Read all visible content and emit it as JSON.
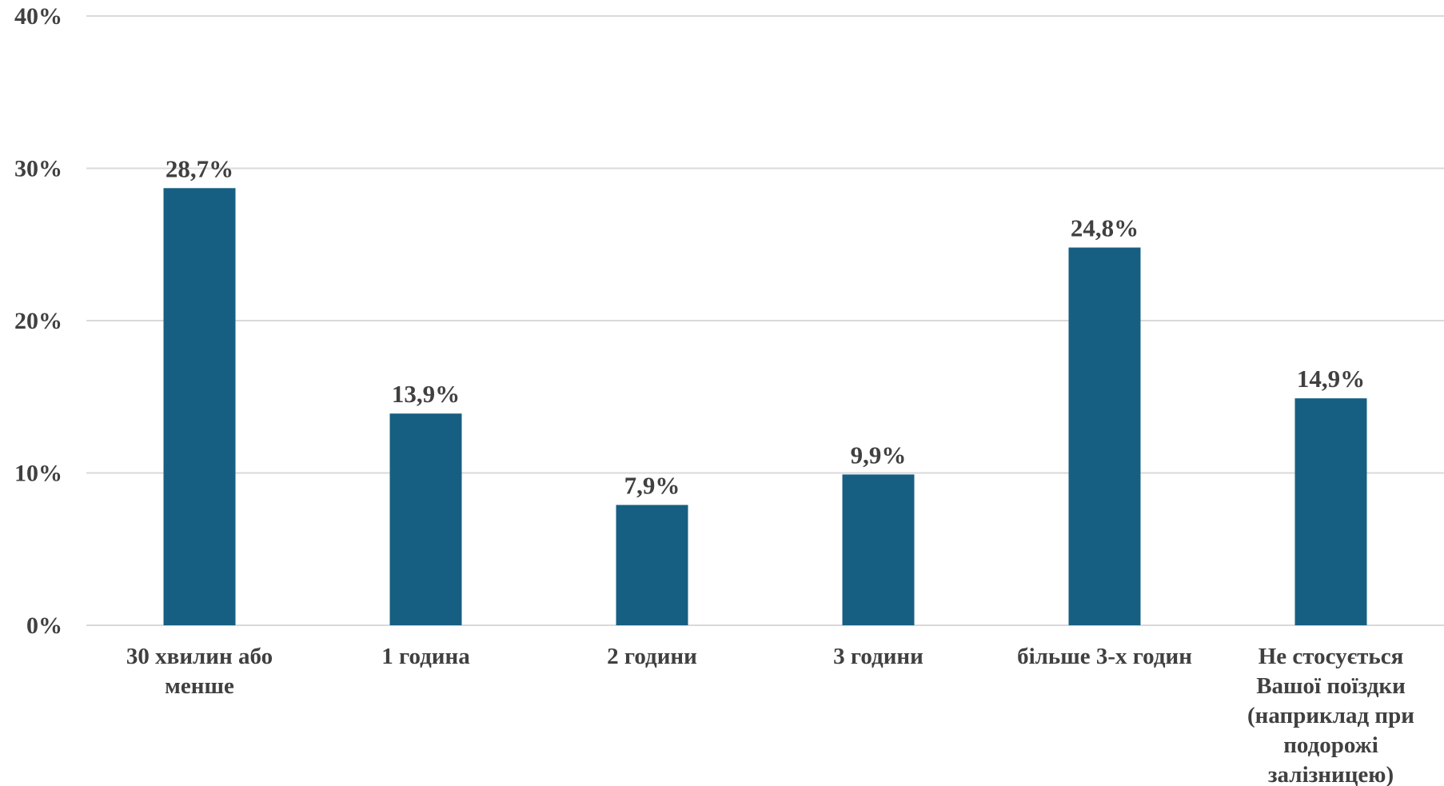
{
  "chart_data": {
    "type": "bar",
    "categories": [
      [
        "30 хвилин або",
        "менше"
      ],
      [
        "1 година"
      ],
      [
        "2 години"
      ],
      [
        "3 години"
      ],
      [
        "більше 3-х годин"
      ],
      [
        "Не стосується",
        "Вашої поїздки",
        "(наприклад при",
        "подорожі",
        "залізницею)"
      ]
    ],
    "values": [
      28.7,
      13.9,
      7.9,
      9.9,
      24.8,
      14.9
    ],
    "data_labels": [
      "28,7%",
      "13,9%",
      "7,9%",
      "9,9%",
      "24,8%",
      "14,9%"
    ],
    "y_ticks": [
      0,
      10,
      20,
      30,
      40
    ],
    "y_tick_labels": [
      "0%",
      "10%",
      "20%",
      "30%",
      "40%"
    ],
    "ylim": [
      0,
      40
    ],
    "grid": true,
    "legend": "none",
    "colors": {
      "bar": "#175f82",
      "grid": "#d9d9d9",
      "text": "#404040"
    }
  }
}
